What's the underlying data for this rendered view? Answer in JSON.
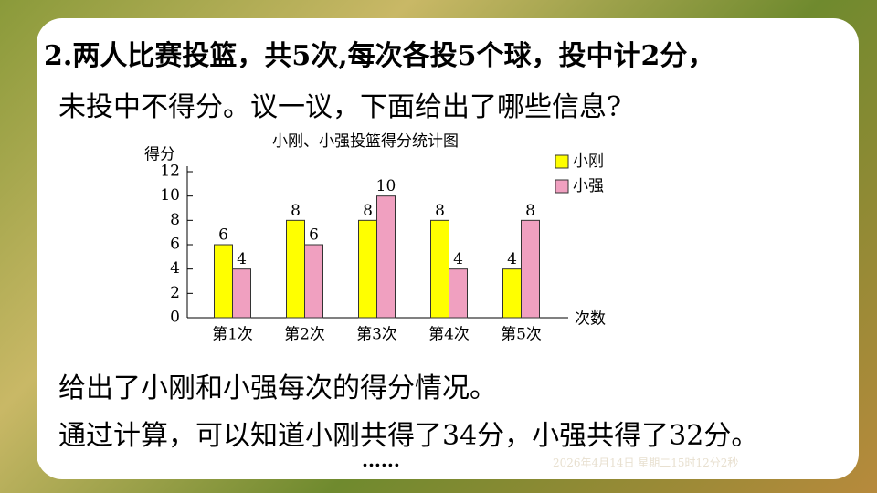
{
  "question": {
    "lines": [
      "2.两人比赛投篮，共5次,每次各投5个球，投中计2分，",
      "未投中不得分。议一议，下面给出了哪些信息?"
    ]
  },
  "chart_data": {
    "type": "bar",
    "title": "小刚、小强投篮得分统计图",
    "y_label": "得分",
    "x_label": "次数",
    "categories": [
      "第1次",
      "第2次",
      "第3次",
      "第4次",
      "第5次"
    ],
    "series": [
      {
        "name": "小刚",
        "color": "#ffff00",
        "values": [
          6,
          8,
          8,
          8,
          4
        ]
      },
      {
        "name": "小强",
        "color": "#f0a0c0",
        "values": [
          4,
          6,
          10,
          4,
          8
        ]
      }
    ],
    "ylim": [
      0,
      12
    ],
    "yticks": [
      0,
      2,
      4,
      6,
      8,
      10,
      12
    ],
    "legend": "top-right",
    "grid": false
  },
  "answer": {
    "lines": [
      "给出了小刚和小强每次的得分情况。",
      "通过计算，可以知道小刚共得了34分，小强共得了32分。",
      "......"
    ]
  },
  "timestamp": "2026年4月14日 星期二15时12分2秒"
}
